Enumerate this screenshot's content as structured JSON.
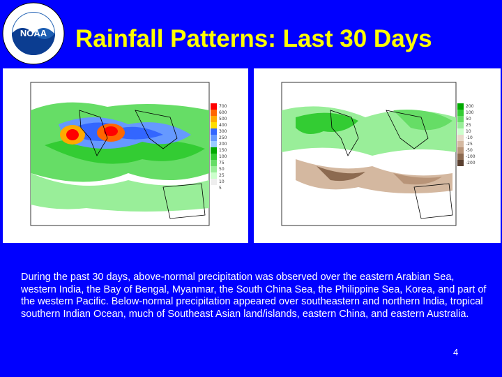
{
  "slide": {
    "title": "Rainfall Patterns: Last 30 Days",
    "page_number": "4",
    "description": "During the past 30 days, above-normal precipitation was observed over the eastern Arabian Sea, western India, the Bay of Bengal, Myanmar, the South China Sea, the Philippine Sea, Korea, and part of the western Pacific. Below-normal precipitation appeared over southeastern and northern India, tropical southern Indian Ocean, much of Southeast Asian land/islands, eastern China, and eastern Australia."
  },
  "logo": {
    "name": "NOAA",
    "ring_text": "NATIONAL OCEANIC AND ATMOSPHERIC ADMINISTRATION · U.S. DEPARTMENT OF COMMERCE"
  },
  "colors": {
    "background": "#0000ff",
    "title": "#ffff00",
    "text": "#ffffff"
  },
  "maps": {
    "left": {
      "legend": [
        "700",
        "600",
        "500",
        "400",
        "300",
        "250",
        "200",
        "150",
        "100",
        "75",
        "50",
        "25",
        "10",
        "5"
      ],
      "legend_colors": [
        "#ff0000",
        "#ff6600",
        "#ffaa00",
        "#ffdd00",
        "#3366ff",
        "#6699ff",
        "#99ccff",
        "#00aa00",
        "#33cc33",
        "#66dd66",
        "#99ee99",
        "#ccffcc",
        "#eeeeee",
        "#ffffff"
      ]
    },
    "right": {
      "legend": [
        "200",
        "100",
        "50",
        "25",
        "10",
        "-10",
        "-25",
        "-50",
        "-100",
        "-200"
      ],
      "legend_colors": [
        "#00aa00",
        "#33cc33",
        "#66dd66",
        "#99ee99",
        "#ccffcc",
        "#e8d8c8",
        "#d4b8a0",
        "#b89478",
        "#8c6a50",
        "#5a4030"
      ]
    }
  }
}
